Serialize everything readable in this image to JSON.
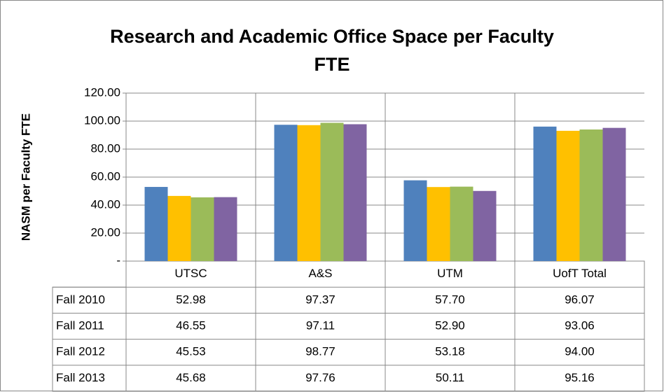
{
  "chart_data": {
    "type": "bar",
    "title": "Research and Academic Office Space per Faculty FTE",
    "y_label": "NASM per Faculty  FTE",
    "categories": [
      "UTSC",
      "A&S",
      "UTM",
      "UofT Total"
    ],
    "series": [
      {
        "name": "Fall 2010",
        "color": "#4f81bd",
        "values": [
          52.98,
          97.37,
          57.7,
          96.07
        ],
        "value_labels": [
          "52.98",
          "97.37",
          "57.70",
          "96.07"
        ]
      },
      {
        "name": "Fall 2011",
        "color": "#ffc000",
        "values": [
          46.55,
          97.11,
          52.9,
          93.06
        ],
        "value_labels": [
          "46.55",
          "97.11",
          "52.90",
          "93.06"
        ]
      },
      {
        "name": "Fall 2012",
        "color": "#9bbb59",
        "values": [
          45.53,
          98.77,
          53.18,
          94.0
        ],
        "value_labels": [
          "45.53",
          "98.77",
          "53.18",
          "94.00"
        ]
      },
      {
        "name": "Fall 2013",
        "color": "#8064a2",
        "values": [
          45.68,
          97.76,
          50.11,
          95.16
        ],
        "value_labels": [
          "45.68",
          "97.76",
          "50.11",
          "95.16"
        ]
      }
    ],
    "ylim": [
      0,
      120
    ],
    "yticks": [
      {
        "value": 0,
        "label": "-"
      },
      {
        "value": 20,
        "label": "20.00"
      },
      {
        "value": 40,
        "label": "40.00"
      },
      {
        "value": 60,
        "label": "60.00"
      },
      {
        "value": 80,
        "label": "80.00"
      },
      {
        "value": 100,
        "label": "100.00"
      },
      {
        "value": 120,
        "label": "120.00"
      }
    ],
    "grid": true
  }
}
